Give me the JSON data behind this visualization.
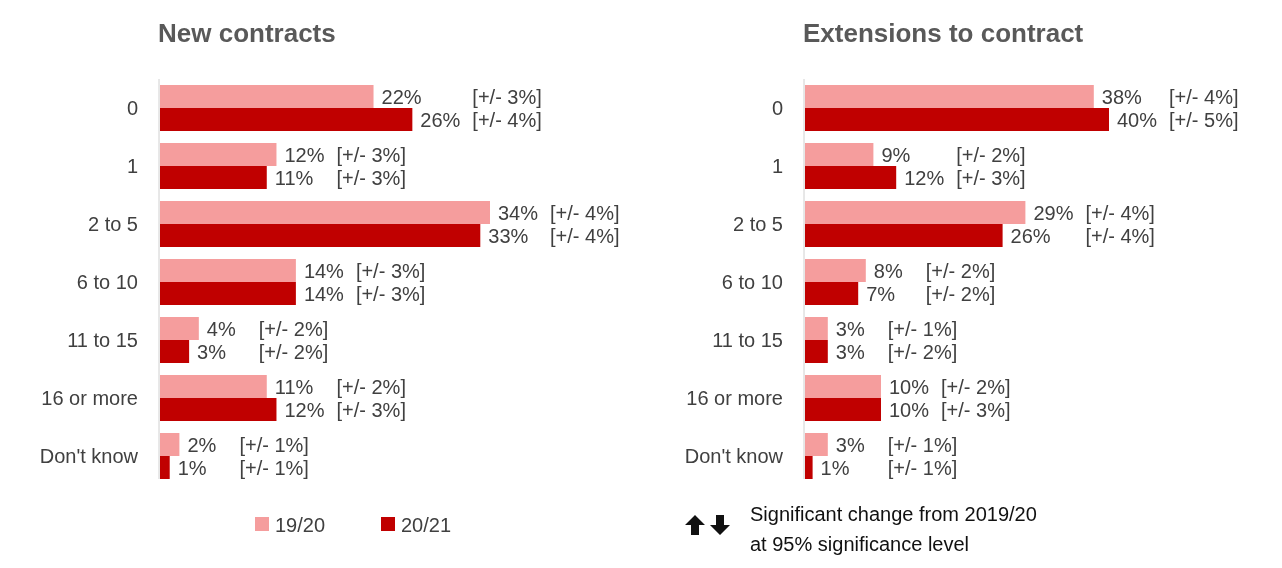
{
  "chart_data": [
    {
      "type": "bar",
      "orientation": "horizontal",
      "title": "New contracts",
      "categories": [
        "0",
        "1",
        "2 to 5",
        "6 to 10",
        "11 to 15",
        "16 or more",
        "Don't know"
      ],
      "legend": "bottom",
      "series": [
        {
          "name": "19/20",
          "color": "#f59d9d",
          "values": [
            22,
            12,
            34,
            14,
            4,
            11,
            2
          ],
          "value_labels": [
            "22%",
            "12%",
            "34%",
            "14%",
            "4%",
            "11%",
            "2%"
          ]
        },
        {
          "name": "20/21",
          "color": "#c00000",
          "values": [
            26,
            11,
            33,
            14,
            3,
            12,
            1
          ],
          "value_labels": [
            "26%",
            "11%",
            "33%",
            "14%",
            "3%",
            "12%",
            "1%"
          ]
        }
      ],
      "annotations": [
        "[+/- 3%]",
        "[+/- 4%]",
        "[+/- 3%]",
        "[+/- 3%]",
        "[+/- 4%]",
        "[+/- 4%]",
        "[+/- 3%]",
        "[+/- 3%]",
        "[+/- 2%]",
        "[+/- 2%]",
        "[+/- 2%]",
        "[+/- 3%]",
        "[+/- 1%]",
        "[+/- 1%]"
      ]
    },
    {
      "type": "bar",
      "orientation": "horizontal",
      "title": "Extensions to contract",
      "categories": [
        "0",
        "1",
        "2 to 5",
        "6 to 10",
        "11 to 15",
        "16 or more",
        "Don't know"
      ],
      "series": [
        {
          "color": "#f59d9d",
          "values": [
            38,
            9,
            29,
            8,
            3,
            10,
            3
          ],
          "value_labels": [
            "38%",
            "9%",
            "29%",
            "8%",
            "3%",
            "10%",
            "3%"
          ]
        },
        {
          "color": "#c00000",
          "values": [
            40,
            12,
            26,
            7,
            3,
            10,
            1
          ],
          "value_labels": [
            "40%",
            "12%",
            "26%",
            "7%",
            "3%",
            "10%",
            "1%"
          ]
        }
      ],
      "annotations": [
        "[+/- 4%]",
        "[+/- 5%]",
        "[+/- 2%]",
        "[+/- 3%]",
        "[+/- 4%]",
        "[+/- 4%]",
        "[+/- 2%]",
        "[+/- 2%]",
        "[+/- 1%]",
        "[+/- 2%]",
        "[+/- 2%]",
        "[+/- 3%]",
        "[+/- 1%]",
        "[+/- 1%]",
        "Significant change from 2019/20 at 95% significance level"
      ]
    }
  ]
}
